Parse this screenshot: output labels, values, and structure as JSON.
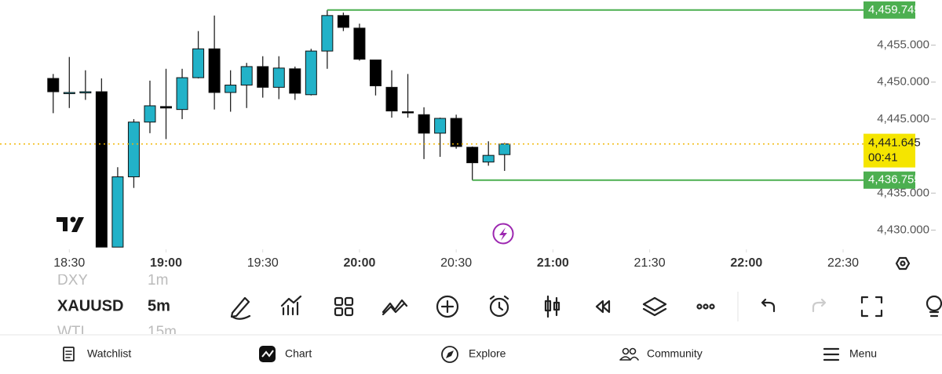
{
  "chart_data": {
    "type": "candlestick",
    "x": [
      1105,
      1110,
      1115,
      1120,
      1125,
      1130,
      1135,
      1140,
      1145,
      1150,
      1155,
      1160,
      1165,
      1170,
      1175,
      1180,
      1185,
      1190,
      1195,
      1200,
      1205,
      1210,
      1215,
      1220,
      1225,
      1230,
      1235,
      1240,
      1245
    ],
    "open": [
      4450.5,
      4448.6,
      4448.6,
      4448.7,
      4427.7,
      4437.2,
      4444.6,
      4446.7,
      4446.3,
      4450.6,
      4454.5,
      4448.6,
      4449.6,
      4452.1,
      4449.3,
      4451.8,
      4448.3,
      4454.2,
      4459.0,
      4457.3,
      4453.0,
      4449.3,
      4446.0,
      4445.6,
      4443.1,
      4445.1,
      4441.2,
      4439.2,
      4440.2
    ],
    "high": [
      4451.1,
      4453.4,
      4451.6,
      4450.5,
      4438.5,
      4445.0,
      4450.2,
      4451.8,
      4451.8,
      4456.9,
      4459.0,
      4451.6,
      4452.6,
      4453.5,
      4453.5,
      4452.1,
      4454.5,
      4459.745,
      4459.4,
      4457.9,
      4453.0,
      4451.6,
      4451.1,
      4446.6,
      4445.2,
      4445.6,
      4441.3,
      4442.0,
      4441.8
    ],
    "low": [
      4445.8,
      4446.5,
      4447.6,
      4427.7,
      4427.7,
      4435.7,
      4443.1,
      4442.3,
      4445.0,
      4450.5,
      4446.3,
      4446.0,
      4446.5,
      4447.9,
      4447.7,
      4447.6,
      4448.2,
      4451.8,
      4456.9,
      4452.9,
      4448.2,
      4445.2,
      4445.2,
      4439.6,
      4439.9,
      4441.0,
      4436.755,
      4438.7,
      4438.0
    ],
    "close": [
      4448.7,
      4448.6,
      4448.7,
      4427.7,
      4437.2,
      4444.6,
      4446.8,
      4446.5,
      4450.6,
      4454.5,
      4448.6,
      4449.6,
      4452.1,
      4449.3,
      4451.9,
      4448.5,
      4454.2,
      4459.0,
      4457.4,
      4453.1,
      4449.5,
      4446.1,
      4445.9,
      4443.1,
      4445.1,
      4441.3,
      4439.1,
      4440.1,
      4441.645
    ],
    "up_color": "#22b2c8",
    "down_color": "#000000",
    "xlim": [
      1088.5,
      1355.6
    ],
    "xticks": [
      {
        "value": 1110,
        "label": "18:30"
      },
      {
        "value": 1140,
        "label": "19:00"
      },
      {
        "value": 1170,
        "label": "19:30"
      },
      {
        "value": 1200,
        "label": "20:00"
      },
      {
        "value": 1230,
        "label": "20:30"
      },
      {
        "value": 1260,
        "label": "21:00"
      },
      {
        "value": 1290,
        "label": "21:30"
      },
      {
        "value": 1320,
        "label": "22:00"
      },
      {
        "value": 1350,
        "label": "22:30"
      }
    ],
    "ylim": [
      4427.4,
      4461.1
    ],
    "yticks": [
      {
        "value": 4430,
        "label": "4,430.000"
      },
      {
        "value": 4435,
        "label": "4,435.000"
      },
      {
        "value": 4445,
        "label": "4,445.000"
      },
      {
        "value": 4450,
        "label": "4,450.000"
      },
      {
        "value": 4455,
        "label": "4,455.000"
      }
    ],
    "price_lines": [
      {
        "value": 4459.745,
        "label": "4,459.745",
        "color": "#4caf50"
      },
      {
        "value": 4441.645,
        "label": "4,441.645",
        "color": "#f5e500"
      },
      {
        "value": 4436.755,
        "label": "4,436.755",
        "color": "#4caf50"
      }
    ],
    "countdown": "00:41"
  },
  "symbols": [
    {
      "symbol": "DXY",
      "interval": "1m"
    },
    {
      "symbol": "XAUUSD",
      "interval": "5m"
    },
    {
      "symbol": "WTI",
      "interval": "15m"
    }
  ],
  "nav": [
    "Watchlist",
    "Chart",
    "Explore",
    "Community",
    "Menu"
  ]
}
